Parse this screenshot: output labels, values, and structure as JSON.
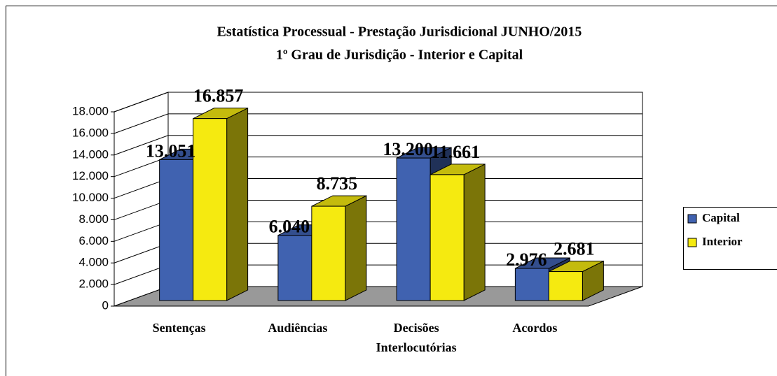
{
  "chart_data": {
    "type": "bar3d",
    "title": "Estatística Processual - Prestação Jurisdicional JUNHO/2015",
    "subtitle": "1º Grau de Jurisdição - Interior e Capital",
    "categories": [
      "Sentenças",
      "Audiências",
      "Decisões Interlocutórias",
      "Acordos"
    ],
    "series": [
      {
        "name": "Capital",
        "color": "#4062b0",
        "values": [
          13051,
          6040,
          13200,
          2976
        ],
        "value_labels": [
          "13.051",
          "6.040",
          "13.200",
          "2.976"
        ]
      },
      {
        "name": "Interior",
        "color": "#f5ea10",
        "values": [
          16857,
          8735,
          11661,
          2681
        ],
        "value_labels": [
          "16.857",
          "8.735",
          "11.661",
          "2.681"
        ]
      }
    ],
    "ylim": [
      0,
      18000
    ],
    "yticks": [
      0,
      {
        "value": 2000,
        "label": "2.000"
      },
      {
        "value": 4000,
        "label": "4.000"
      },
      {
        "value": 6000,
        "label": "6.000"
      },
      {
        "value": 8000,
        "label": "8.000"
      },
      {
        "value": 10000,
        "label": "10.000"
      },
      {
        "value": 12000,
        "label": "12.000"
      },
      {
        "value": 14000,
        "label": "14.000"
      },
      {
        "value": 16000,
        "label": "16.000"
      },
      {
        "value": 18000,
        "label": "18.000"
      }
    ],
    "grid": true,
    "legend": "right"
  }
}
